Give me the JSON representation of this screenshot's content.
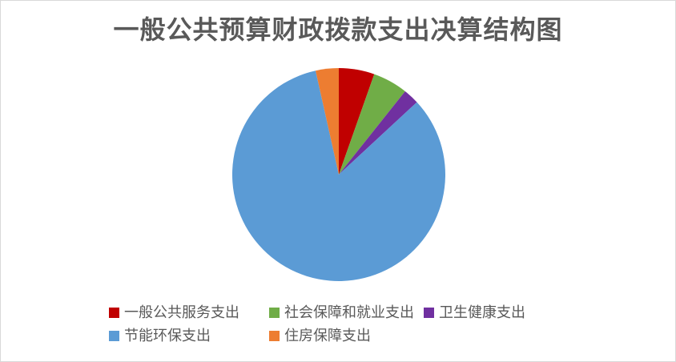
{
  "page": {
    "background_color": "#ffffff",
    "border_color": "#d9d9d9",
    "title_color": "#595959",
    "legend_text_color": "#595959"
  },
  "chart_data": {
    "type": "pie",
    "title": "一般公共预算财政拨款支出决算结构图",
    "legend_position": "bottom",
    "start_angle_deg": 0,
    "direction": "clockwise",
    "data_labels_shown": false,
    "slices": [
      {
        "label": "一般公共服务支出",
        "percent": 5.4,
        "color": "#c00000"
      },
      {
        "label": "社会保障和就业支出",
        "percent": 5.3,
        "color": "#70ad47"
      },
      {
        "label": "卫生健康支出",
        "percent": 2.4,
        "color": "#7030a0"
      },
      {
        "label": "节能环保支出",
        "percent": 83.4,
        "color": "#5b9bd5"
      },
      {
        "label": "住房保障支出",
        "percent": 3.5,
        "color": "#ed7d31"
      }
    ]
  }
}
